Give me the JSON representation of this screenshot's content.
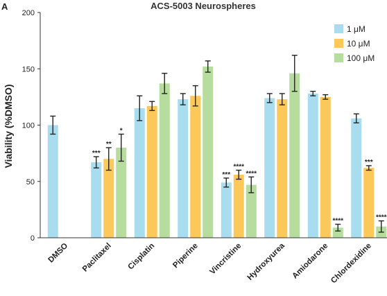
{
  "panel_letter": "A",
  "chart_data": {
    "type": "bar",
    "title": "ACS-5003 Neurospheres",
    "xlabel": "",
    "ylabel": "Viability (%DMSO)",
    "ylim": [
      0,
      200
    ],
    "yticks": [
      0,
      50,
      100,
      150,
      200
    ],
    "grid": false,
    "legend_position": "top-right",
    "categories": [
      "DMSO",
      "Paclitaxel",
      "Cisplatin",
      "Piperine",
      "Vincristine",
      "Hydroxyurea",
      "Amiodarone",
      "Chlordexidine"
    ],
    "series": [
      {
        "name": "1 μM",
        "color": "#a8dcef",
        "values": [
          100,
          67,
          115,
          123,
          49,
          124,
          128,
          106
        ],
        "errors": [
          8,
          5,
          11,
          5,
          4,
          4,
          2,
          4
        ],
        "sig": [
          "",
          "***",
          "",
          "",
          "***",
          "",
          "",
          ""
        ]
      },
      {
        "name": "10 μM",
        "color": "#fdc85a",
        "values": [
          null,
          70,
          117,
          126,
          56,
          123,
          125,
          62
        ],
        "errors": [
          0,
          10,
          4,
          9,
          4,
          5,
          2,
          2
        ],
        "sig": [
          "",
          "**",
          "",
          "",
          "****",
          "",
          "",
          "***"
        ]
      },
      {
        "name": "100 μM",
        "color": "#b6dc9e",
        "values": [
          null,
          80,
          137,
          152,
          47,
          146,
          9,
          10
        ],
        "errors": [
          0,
          12,
          9,
          5,
          7,
          16,
          3,
          5
        ],
        "sig": [
          "",
          "*",
          "",
          "",
          "****",
          "",
          "****",
          "****"
        ]
      }
    ]
  }
}
